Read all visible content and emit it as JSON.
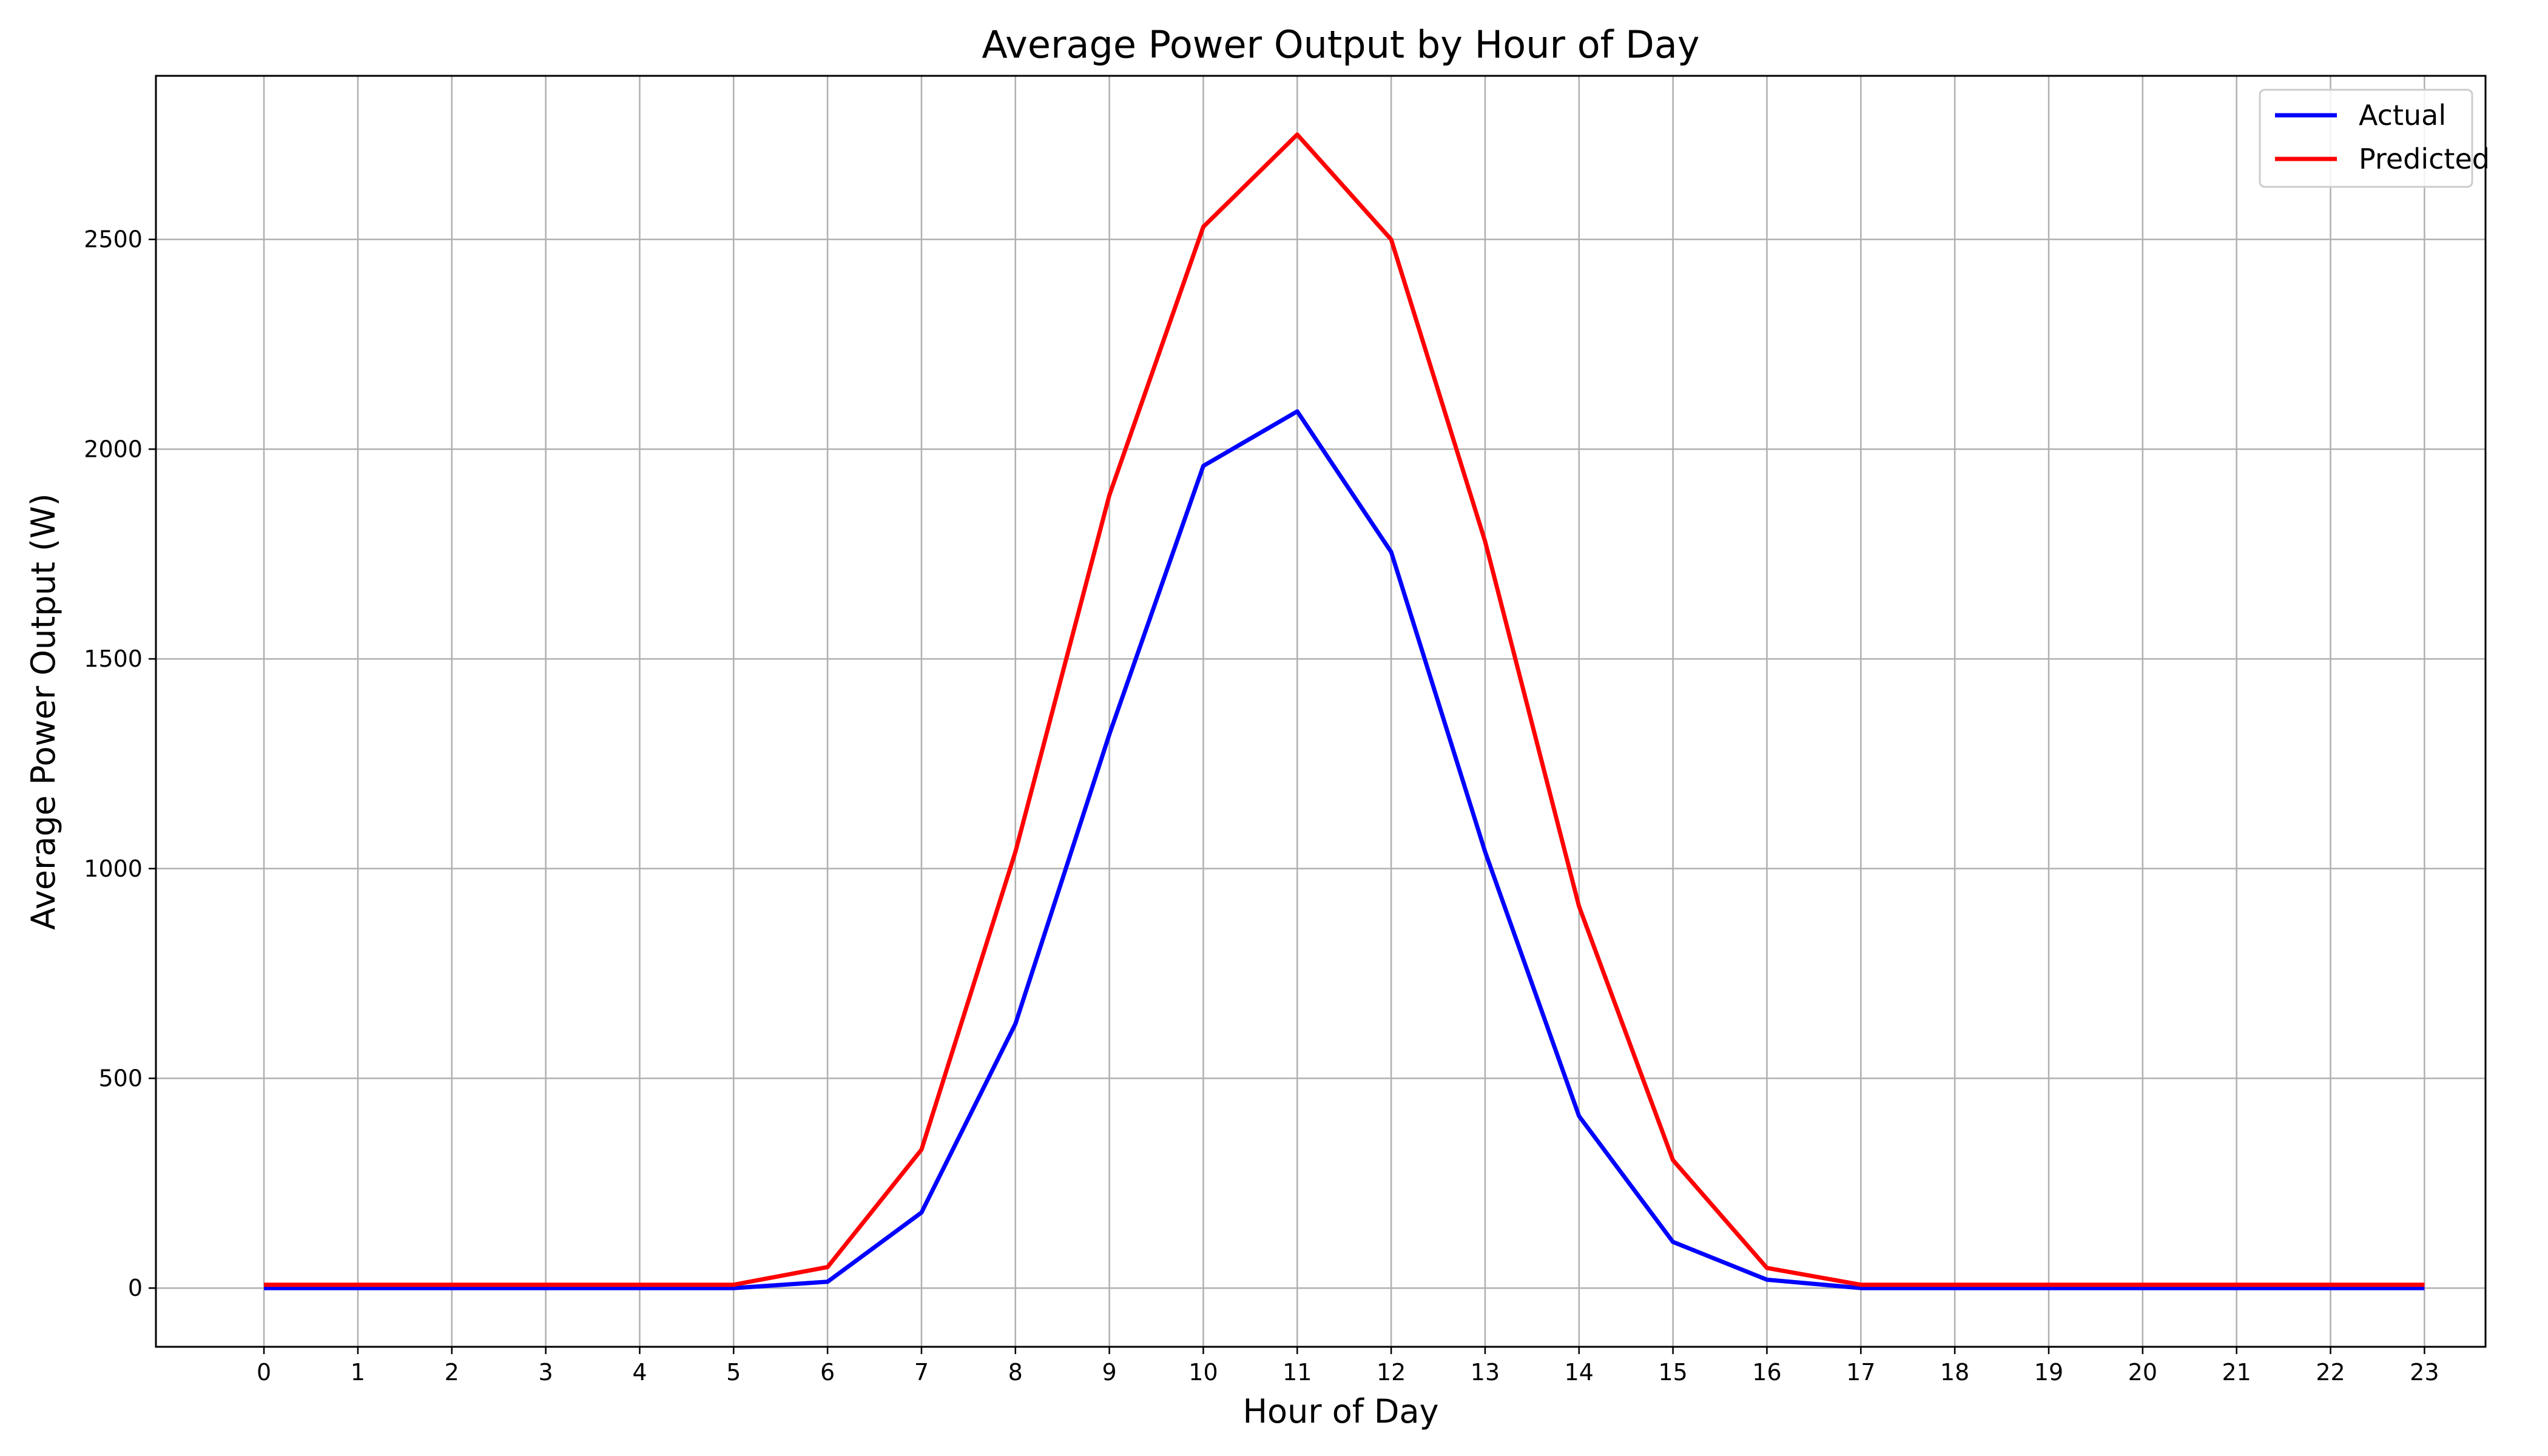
{
  "chart_data": {
    "type": "line",
    "title": "Average Power Output by Hour of Day",
    "xlabel": "Hour of Day",
    "ylabel": "Average Power Output (W)",
    "x": [
      0,
      1,
      2,
      3,
      4,
      5,
      6,
      7,
      8,
      9,
      10,
      11,
      12,
      13,
      14,
      15,
      16,
      17,
      18,
      19,
      20,
      21,
      22,
      23
    ],
    "xlim": [
      -1.15,
      23.65
    ],
    "ylim": [
      -140,
      2890
    ],
    "yticks": [
      0,
      500,
      1000,
      1500,
      2000,
      2500
    ],
    "grid": true,
    "legend_position": "top-right",
    "series": [
      {
        "name": "Actual",
        "color": "#0000ff",
        "values": [
          0,
          0,
          0,
          0,
          0,
          0,
          15,
          180,
          630,
          1320,
          1960,
          2090,
          1755,
          1040,
          410,
          110,
          20,
          0,
          0,
          0,
          0,
          0,
          0,
          0
        ]
      },
      {
        "name": "Predicted",
        "color": "#ff0000",
        "values": [
          8,
          8,
          8,
          8,
          8,
          8,
          50,
          330,
          1040,
          1890,
          2530,
          2750,
          2500,
          1780,
          910,
          305,
          48,
          8,
          8,
          8,
          8,
          8,
          8,
          8
        ]
      }
    ]
  }
}
